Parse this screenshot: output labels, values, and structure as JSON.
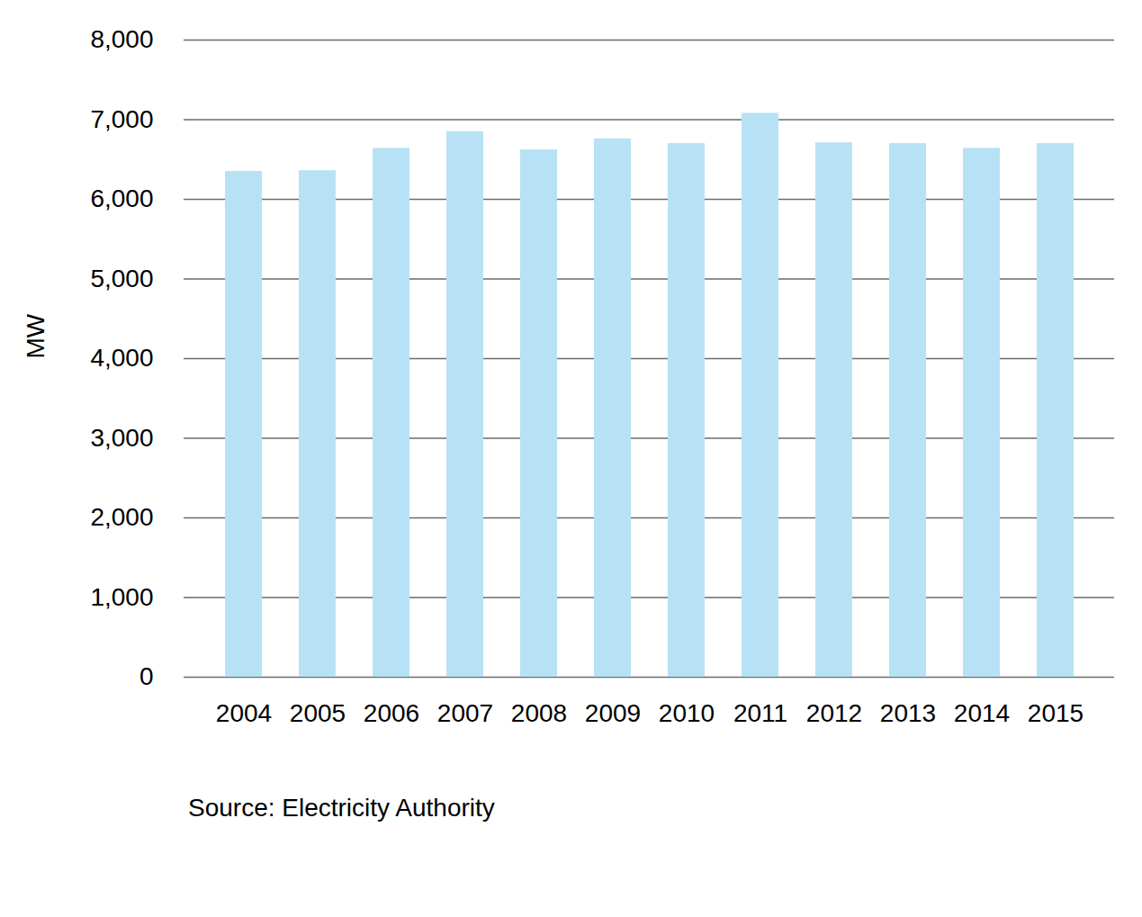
{
  "chart_data": {
    "type": "bar",
    "categories": [
      "2004",
      "2005",
      "2006",
      "2007",
      "2008",
      "2009",
      "2010",
      "2011",
      "2012",
      "2013",
      "2014",
      "2015"
    ],
    "values": [
      6350,
      6360,
      6640,
      6850,
      6620,
      6760,
      6700,
      7080,
      6710,
      6700,
      6640,
      6700
    ],
    "color": "#b7e2f5",
    "ylabel": "MW",
    "ylim": [
      0,
      8000
    ],
    "yticks": [
      0,
      {
        "value": 1000,
        "label": "1,000"
      },
      {
        "value": 2000,
        "label": "2,000"
      },
      {
        "value": 3000,
        "label": "3,000"
      },
      {
        "value": 4000,
        "label": "4,000"
      },
      {
        "value": 5000,
        "label": "5,000"
      },
      {
        "value": 6000,
        "label": "6,000"
      },
      {
        "value": 7000,
        "label": "7,000"
      },
      {
        "value": 8000,
        "label": "8,000"
      }
    ],
    "grid": true,
    "caption": "Source: Electricity Authority"
  }
}
